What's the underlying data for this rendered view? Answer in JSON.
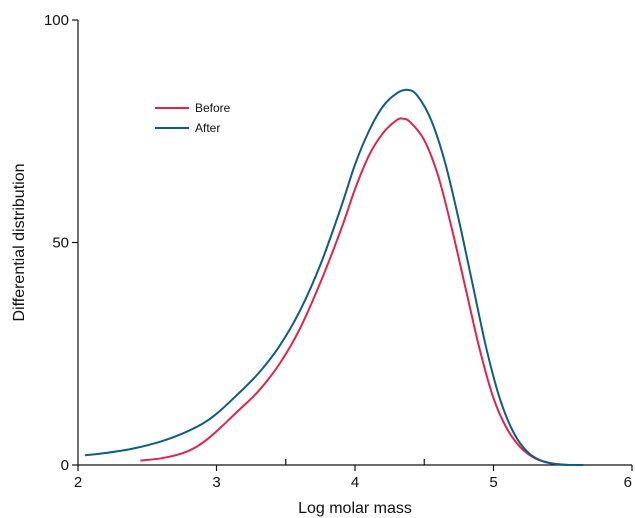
{
  "chart_data": {
    "type": "line",
    "title": "",
    "xlabel": "Log molar mass",
    "ylabel": "Differential distribution",
    "xlim": [
      2,
      6
    ],
    "ylim": [
      0,
      100
    ],
    "x_ticks": [
      {
        "value": 2,
        "label": "2"
      },
      {
        "value": 3,
        "label": "3"
      },
      {
        "value": 4,
        "label": "4"
      },
      {
        "value": 5,
        "label": "5"
      },
      {
        "value": 6,
        "label": "6"
      }
    ],
    "x_minor_ticks": [
      3.5,
      4.5
    ],
    "y_ticks": [
      {
        "value": 0,
        "label": "0"
      },
      {
        "value": 50,
        "label": "50"
      },
      {
        "value": 100,
        "label": "100"
      }
    ],
    "grid": false,
    "legend_position": "top-left",
    "series": [
      {
        "name": "Before",
        "color": "#e0244b",
        "x": [
          2.45,
          2.6,
          2.75,
          2.85,
          2.95,
          3.05,
          3.15,
          3.3,
          3.45,
          3.6,
          3.75,
          3.9,
          4.0,
          4.1,
          4.2,
          4.3,
          4.35,
          4.4,
          4.5,
          4.6,
          4.7,
          4.8,
          4.9,
          5.0,
          5.1,
          5.2,
          5.3,
          5.4,
          5.5,
          5.6,
          5.65
        ],
        "y": [
          1,
          1.5,
          2.6,
          4,
          6.2,
          9,
          12,
          16.5,
          22.5,
          30.5,
          41,
          53,
          62,
          69.5,
          74.5,
          77.5,
          77.8,
          77,
          73,
          65,
          53,
          39.5,
          26,
          15,
          8,
          3.8,
          1.5,
          0.5,
          0.1,
          0,
          0
        ]
      },
      {
        "name": "After",
        "color": "#0f5c85",
        "x": [
          2.05,
          2.2,
          2.4,
          2.6,
          2.75,
          2.9,
          3.0,
          3.15,
          3.3,
          3.45,
          3.6,
          3.75,
          3.9,
          4.0,
          4.1,
          4.2,
          4.3,
          4.38,
          4.45,
          4.55,
          4.65,
          4.75,
          4.85,
          4.95,
          5.05,
          5.15,
          5.25,
          5.35,
          5.45,
          5.55,
          5.65
        ],
        "y": [
          2.2,
          2.7,
          3.7,
          5.3,
          7,
          9.3,
          11.5,
          15.8,
          20.5,
          26.5,
          34.5,
          45,
          58,
          67.5,
          75,
          80.5,
          83.5,
          84.3,
          83,
          77.5,
          68,
          55,
          40.5,
          26,
          14.5,
          7,
          2.8,
          0.9,
          0.2,
          0,
          0
        ]
      }
    ]
  }
}
